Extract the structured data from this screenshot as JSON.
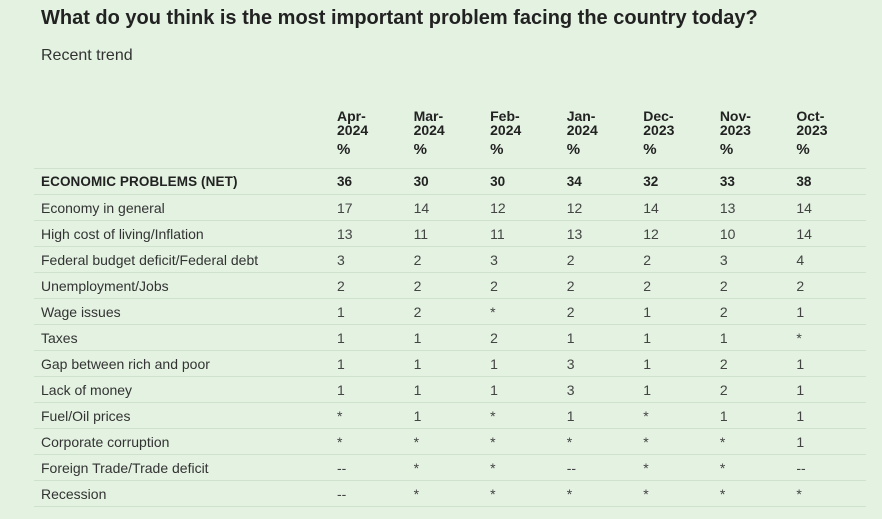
{
  "title": "What do you think is the most important problem facing the country today?",
  "subtitle": "Recent trend",
  "columns": [
    {
      "month": "Apr-",
      "year": "2024",
      "unit": "%"
    },
    {
      "month": "Mar-",
      "year": "2024",
      "unit": "%"
    },
    {
      "month": "Feb-",
      "year": "2024",
      "unit": "%"
    },
    {
      "month": "Jan-",
      "year": "2024",
      "unit": "%"
    },
    {
      "month": "Dec-",
      "year": "2023",
      "unit": "%"
    },
    {
      "month": "Nov-",
      "year": "2023",
      "unit": "%"
    },
    {
      "month": "Oct-",
      "year": "2023",
      "unit": "%"
    }
  ],
  "rows": [
    {
      "label": "ECONOMIC PROBLEMS (NET)",
      "net": true,
      "values": [
        "36",
        "30",
        "30",
        "34",
        "32",
        "33",
        "38"
      ]
    },
    {
      "label": "Economy in general",
      "values": [
        "17",
        "14",
        "12",
        "12",
        "14",
        "13",
        "14"
      ]
    },
    {
      "label": "High cost of living/Inflation",
      "values": [
        "13",
        "11",
        "11",
        "13",
        "12",
        "10",
        "14"
      ]
    },
    {
      "label": "Federal budget deficit/Federal debt",
      "values": [
        "3",
        "2",
        "3",
        "2",
        "2",
        "3",
        "4"
      ]
    },
    {
      "label": "Unemployment/Jobs",
      "values": [
        "2",
        "2",
        "2",
        "2",
        "2",
        "2",
        "2"
      ]
    },
    {
      "label": "Wage issues",
      "values": [
        "1",
        "2",
        "*",
        "2",
        "1",
        "2",
        "1"
      ]
    },
    {
      "label": "Taxes",
      "values": [
        "1",
        "1",
        "2",
        "1",
        "1",
        "1",
        "*"
      ]
    },
    {
      "label": "Gap between rich and poor",
      "values": [
        "1",
        "1",
        "1",
        "3",
        "1",
        "2",
        "1"
      ]
    },
    {
      "label": "Lack of money",
      "values": [
        "1",
        "1",
        "1",
        "3",
        "1",
        "2",
        "1"
      ]
    },
    {
      "label": "Fuel/Oil prices",
      "values": [
        "*",
        "1",
        "*",
        "1",
        "*",
        "1",
        "1"
      ]
    },
    {
      "label": "Corporate corruption",
      "values": [
        "*",
        "*",
        "*",
        "*",
        "*",
        "*",
        "1"
      ]
    },
    {
      "label": "Foreign Trade/Trade deficit",
      "values": [
        "--",
        "*",
        "*",
        "--",
        "*",
        "*",
        "--"
      ]
    },
    {
      "label": "Recession",
      "values": [
        "--",
        "*",
        "*",
        "*",
        "*",
        "*",
        "*"
      ]
    }
  ]
}
